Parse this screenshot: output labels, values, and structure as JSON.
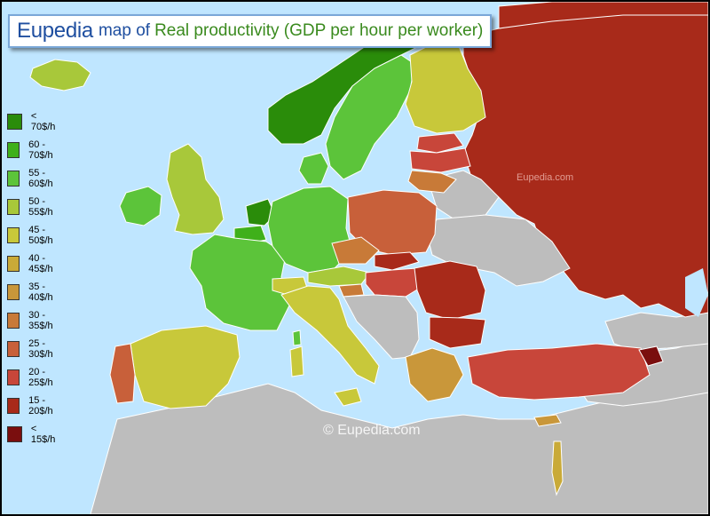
{
  "header": {
    "brand": "Eupedia",
    "connector": "map of",
    "topic": "Real productivity (GDP per hour per worker)"
  },
  "legend": [
    {
      "label": "< 70$/h",
      "color": "#2a8c0a"
    },
    {
      "label": "60 - 70$/h",
      "color": "#3fb01a"
    },
    {
      "label": "55 - 60$/h",
      "color": "#5cc43a"
    },
    {
      "label": "50 - 55$/h",
      "color": "#a8c83a"
    },
    {
      "label": "45 - 50$/h",
      "color": "#c8c83a"
    },
    {
      "label": "40 - 45$/h",
      "color": "#c9aa38"
    },
    {
      "label": "35 - 40$/h",
      "color": "#c9973a"
    },
    {
      "label": "30 - 35$/h",
      "color": "#c87a38"
    },
    {
      "label": "25 - 30$/h",
      "color": "#c8603a"
    },
    {
      "label": "20 - 25$/h",
      "color": "#c8463a"
    },
    {
      "label": "15 - 20$/h",
      "color": "#a82a1a"
    },
    {
      "label": "< 15$/h",
      "color": "#7a0e0e"
    }
  ],
  "watermarks": {
    "center": "©  Eupedia.com",
    "russia": "Eupedia.com"
  },
  "colors": {
    "sea": "#bfe6ff",
    "no_data": "#bdbdbd",
    "border": "#ffffff"
  }
}
